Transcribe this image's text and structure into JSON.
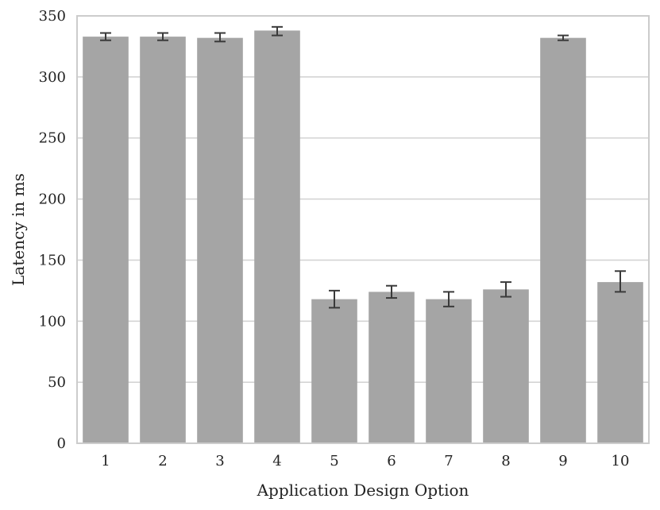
{
  "chart_data": {
    "type": "bar",
    "title": "",
    "xlabel": "Application Design Option",
    "ylabel": "Latency in ms",
    "categories": [
      "1",
      "2",
      "3",
      "4",
      "5",
      "6",
      "7",
      "8",
      "9",
      "10"
    ],
    "values": [
      333,
      333,
      332,
      338,
      118,
      124,
      118,
      126,
      332,
      132
    ],
    "error_low": [
      330,
      330,
      329,
      334,
      111,
      119,
      112,
      120,
      330,
      124
    ],
    "error_high": [
      336,
      336,
      336,
      341,
      125,
      129,
      124,
      132,
      334,
      141
    ],
    "ylim": [
      0,
      350
    ],
    "yticks": [
      "0",
      "50",
      "100",
      "150",
      "200",
      "250",
      "300",
      "350"
    ],
    "grid": true,
    "legend": "none",
    "colors": {
      "bar": "#a5a5a5",
      "error_bar": "#3a3a3a",
      "grid": "#d4d4d4",
      "spine": "#cccccc"
    }
  }
}
